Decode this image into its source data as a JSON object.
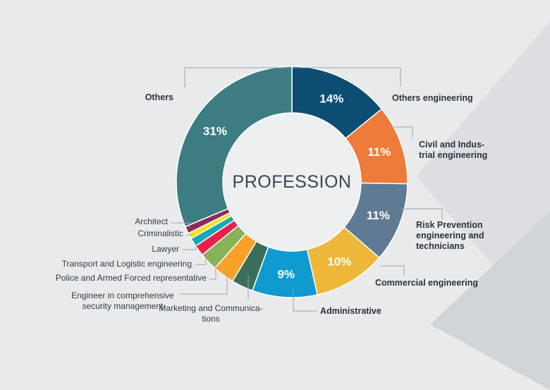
{
  "chart_data": {
    "type": "pie",
    "title": "PROFESSION",
    "slices": [
      {
        "label": "Others engineering",
        "value": 14,
        "pct_label": "14%",
        "color": "#0e4d73",
        "bold": true
      },
      {
        "label": "Civil and Indus-\ntrial engineering",
        "value": 11,
        "pct_label": "11%",
        "color": "#ee7b3a",
        "bold": true
      },
      {
        "label": "Risk Prevention\nengineering and\ntechnicians",
        "value": 11,
        "pct_label": "11%",
        "color": "#5f7b93",
        "bold": true
      },
      {
        "label": "Commercial engineering",
        "value": 10,
        "pct_label": "10%",
        "color": "#edb73a",
        "bold": true
      },
      {
        "label": "Administrative",
        "value": 9,
        "pct_label": "9%",
        "color": "#0f9ad0",
        "bold": true
      },
      {
        "label": "Marketing and Communica-\ntions",
        "value": 3,
        "pct_label": "",
        "color": "#3a6e5a",
        "bold": false
      },
      {
        "label": "Engineer in comprehensive\nsecurity management",
        "value": 3,
        "pct_label": "",
        "color": "#f7a128",
        "bold": false
      },
      {
        "label": "Police and Armed Forced representative",
        "value": 2.5,
        "pct_label": "",
        "color": "#86b35a",
        "bold": false
      },
      {
        "label": "Transport and Logistic engineering",
        "value": 1.5,
        "pct_label": "",
        "color": "#e8204a",
        "bold": false
      },
      {
        "label": "Lawyer",
        "value": 1.2,
        "pct_label": "",
        "color": "#17a7b5",
        "bold": false
      },
      {
        "label": "Criminalistic",
        "value": 0.8,
        "pct_label": "",
        "color": "#f1e21c",
        "bold": false
      },
      {
        "label": "Architect",
        "value": 1,
        "pct_label": "",
        "color": "#8e2a5a",
        "bold": false
      },
      {
        "label": "Others",
        "value": 31,
        "pct_label": "31%",
        "color": "#3b7d80",
        "bold": true
      }
    ]
  }
}
